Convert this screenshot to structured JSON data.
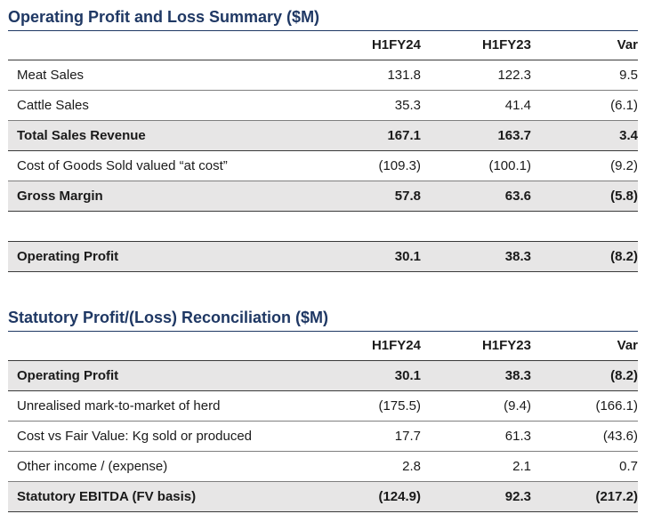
{
  "pl_summary": {
    "title": "Operating Profit and Loss Summary ($M)",
    "columns": [
      "",
      "H1FY24",
      "H1FY23",
      "Var"
    ],
    "rows": [
      {
        "label": "Meat Sales",
        "h1fy24": "131.8",
        "h1fy23": "122.3",
        "var": "9.5",
        "bold": false
      },
      {
        "label": "Cattle Sales",
        "h1fy24": "35.3",
        "h1fy23": "41.4",
        "var": "(6.1)",
        "bold": false
      },
      {
        "label": "Total Sales Revenue",
        "h1fy24": "167.1",
        "h1fy23": "163.7",
        "var": "3.4",
        "bold": true
      },
      {
        "label": "Cost of Goods Sold valued “at cost”",
        "h1fy24": "(109.3)",
        "h1fy23": "(100.1)",
        "var": "(9.2)",
        "bold": false
      },
      {
        "label": "Gross Margin",
        "h1fy24": "57.8",
        "h1fy23": "63.6",
        "var": "(5.8)",
        "bold": true
      },
      {
        "label": "Operating Profit",
        "h1fy24": "30.1",
        "h1fy23": "38.3",
        "var": "(8.2)",
        "bold": true
      }
    ]
  },
  "reconciliation": {
    "title": "Statutory Profit/(Loss) Reconciliation ($M)",
    "columns": [
      "",
      "H1FY24",
      "H1FY23",
      "Var"
    ],
    "rows": [
      {
        "label": "Operating Profit",
        "h1fy24": "30.1",
        "h1fy23": "38.3",
        "var": "(8.2)",
        "bold": true
      },
      {
        "label": "Unrealised mark-to-market of herd",
        "h1fy24": "(175.5)",
        "h1fy23": "(9.4)",
        "var": "(166.1)",
        "bold": false
      },
      {
        "label": "Cost vs Fair Value: Kg sold or produced",
        "h1fy24": "17.7",
        "h1fy23": "61.3",
        "var": "(43.6)",
        "bold": false
      },
      {
        "label": "Other income / (expense)",
        "h1fy24": "2.8",
        "h1fy23": "2.1",
        "var": "0.7",
        "bold": false
      },
      {
        "label": "Statutory EBITDA (FV basis)",
        "h1fy24": "(124.9)",
        "h1fy23": "92.3",
        "var": "(217.2)",
        "bold": true
      }
    ]
  },
  "colors": {
    "title": "#1f3864",
    "total_row_bg": "#e7e6e6",
    "rule": "#3a3a3a"
  }
}
